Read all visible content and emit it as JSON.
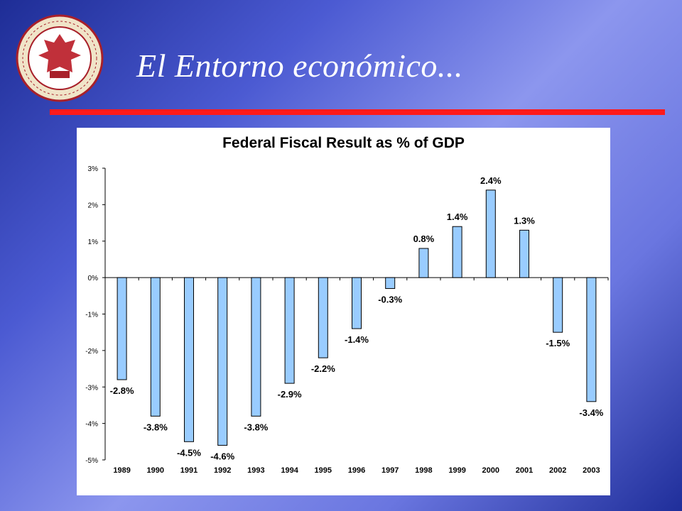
{
  "slide": {
    "title": "El Entorno económico...",
    "logo_icon": "university-seal-icon"
  },
  "colors": {
    "title_rule": "#ff1a1a",
    "bar_fill": "#99ccff",
    "bar_stroke": "#000000"
  },
  "chart_data": {
    "type": "bar",
    "title": "Federal Fiscal Result as % of GDP",
    "xlabel": "",
    "ylabel": "",
    "categories": [
      "1989",
      "1990",
      "1991",
      "1992",
      "1993",
      "1994",
      "1995",
      "1996",
      "1997",
      "1998",
      "1999",
      "2000",
      "2001",
      "2002",
      "2003"
    ],
    "values": [
      -2.8,
      -3.8,
      -4.5,
      -4.6,
      -3.8,
      -2.9,
      -2.2,
      -1.4,
      -0.3,
      0.8,
      1.4,
      2.4,
      1.3,
      -1.5,
      -3.4
    ],
    "labels": [
      "-2.8%",
      "-3.8%",
      "-4.5%",
      "-4.6%",
      "-3.8%",
      "-2.9%",
      "-2.2%",
      "-1.4%",
      "-0.3%",
      "0.8%",
      "1.4%",
      "2.4%",
      "1.3%",
      "-1.5%",
      "-3.4%"
    ],
    "ylim": [
      -5,
      3
    ],
    "yticks": [
      3,
      2,
      1,
      0,
      -1,
      -2,
      -3,
      -4,
      -5
    ],
    "ytick_labels": [
      "3%",
      "2%",
      "1%",
      "0%",
      "-1%",
      "-2%",
      "-3%",
      "-4%",
      "-5%"
    ],
    "grid": false,
    "legend": "none"
  }
}
